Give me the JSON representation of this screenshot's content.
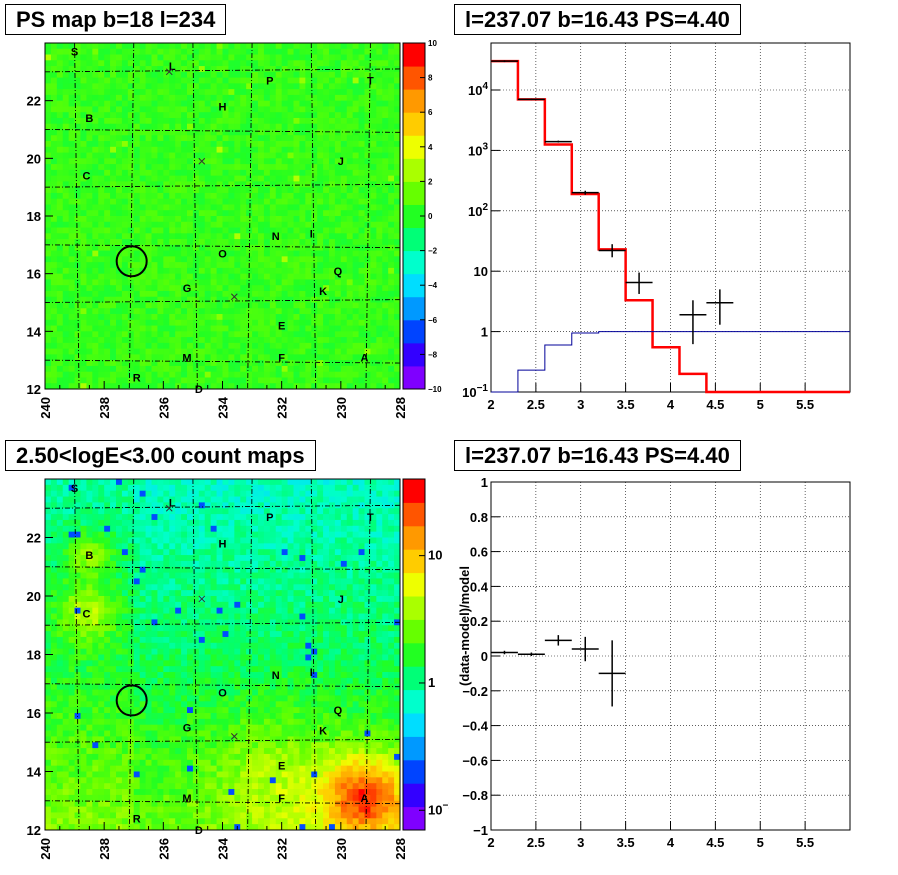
{
  "panels": {
    "ps_map": {
      "title": "PS map b=18 l=234"
    },
    "spectrum": {
      "title": "l=237.07 b=16.43 PS=4.40"
    },
    "count_map": {
      "title": "2.50<logE<3.00 count maps"
    },
    "residual": {
      "title": "l=237.07 b=16.43 PS=4.40"
    }
  },
  "chart_data": [
    {
      "type": "heatmap",
      "name": "ps_map",
      "title": "PS map b=18 l=234",
      "x_ticks": [
        "240",
        "238",
        "236",
        "234",
        "232",
        "230",
        "228"
      ],
      "y_ticks": [
        "22",
        "20",
        "18",
        "16",
        "14",
        "12"
      ],
      "xlim": [
        240,
        228
      ],
      "ylim": [
        12,
        24
      ],
      "colorbar": {
        "ticks": [
          "10",
          "8",
          "6",
          "4",
          "2",
          "0",
          "−2",
          "−4",
          "−6",
          "−8",
          "−10"
        ],
        "range": [
          -10,
          10
        ],
        "colors": [
          "#7f00ff",
          "#3300ff",
          "#0044ff",
          "#0099ff",
          "#00ddff",
          "#00ffcc",
          "#00ff77",
          "#22ff22",
          "#66ff00",
          "#aaff00",
          "#eeff00",
          "#ffcc00",
          "#ff9900",
          "#ff5500",
          "#ff0000"
        ]
      },
      "source_labels": [
        {
          "text": "S",
          "l": 239.0,
          "b": 23.7
        },
        {
          "text": "L",
          "l": 235.7,
          "b": 23.2
        },
        {
          "text": "P",
          "l": 232.4,
          "b": 22.7
        },
        {
          "text": "T",
          "l": 229.0,
          "b": 22.7
        },
        {
          "text": "H",
          "l": 234.0,
          "b": 21.8
        },
        {
          "text": "B",
          "l": 238.5,
          "b": 21.4
        },
        {
          "text": "J",
          "l": 230.0,
          "b": 19.9
        },
        {
          "text": "C",
          "l": 238.6,
          "b": 19.4
        },
        {
          "text": "N",
          "l": 232.2,
          "b": 17.3
        },
        {
          "text": "I",
          "l": 231.0,
          "b": 17.4
        },
        {
          "text": "O",
          "l": 234.0,
          "b": 16.7
        },
        {
          "text": "Q",
          "l": 230.1,
          "b": 16.1
        },
        {
          "text": "G",
          "l": 235.2,
          "b": 15.5
        },
        {
          "text": "K",
          "l": 230.6,
          "b": 15.4
        },
        {
          "text": "E",
          "l": 232.0,
          "b": 14.2
        },
        {
          "text": "M",
          "l": 235.2,
          "b": 13.1
        },
        {
          "text": "F",
          "l": 232.0,
          "b": 13.1
        },
        {
          "text": "A",
          "l": 229.2,
          "b": 13.1
        },
        {
          "text": "R",
          "l": 236.9,
          "b": 12.4
        },
        {
          "text": "D",
          "l": 234.8,
          "b": 12.0
        }
      ],
      "circle": {
        "l": 237.07,
        "b": 16.43
      },
      "crosses": [
        {
          "l": 235.8,
          "b": 23.0
        },
        {
          "l": 234.7,
          "b": 19.9
        },
        {
          "l": 233.6,
          "b": 15.2
        }
      ]
    },
    {
      "type": "line",
      "name": "spectrum",
      "title": "l=237.07 b=16.43 PS=4.40",
      "xlim": [
        2,
        6
      ],
      "ylim": [
        0.1,
        60000
      ],
      "yscale": "log",
      "x_ticks": [
        "2",
        "2.5",
        "3",
        "3.5",
        "4",
        "4.5",
        "5",
        "5.5"
      ],
      "y_ticks": [
        {
          "v": 0.1,
          "base": "10",
          "exp": "−1"
        },
        {
          "v": 1,
          "base": "1",
          "exp": ""
        },
        {
          "v": 10,
          "base": "10",
          "exp": ""
        },
        {
          "v": 100,
          "base": "10",
          "exp": "2"
        },
        {
          "v": 1000,
          "base": "10",
          "exp": "3"
        },
        {
          "v": 10000,
          "base": "10",
          "exp": "4"
        }
      ],
      "grid": true,
      "series": [
        {
          "color": "#ff0000",
          "edges": [
            2,
            2.3,
            2.6,
            2.9,
            3.2,
            3.5,
            3.8,
            4.1,
            4.4,
            6.0
          ],
          "values": [
            30000,
            7000,
            1250,
            190,
            23,
            3.3,
            0.55,
            0.2,
            0.1
          ]
        },
        {
          "color": "#000099",
          "edges": [
            2,
            2.3,
            2.6,
            2.9,
            3.2,
            3.5,
            6.0
          ],
          "values": [
            0.1,
            0.23,
            0.6,
            0.95,
            1.0,
            1.0
          ]
        }
      ],
      "points": [
        {
          "x": 2.15,
          "y": 30000,
          "xerr": 0.15,
          "ylo": 29000,
          "yhi": 31000
        },
        {
          "x": 2.45,
          "y": 7000,
          "xerr": 0.15,
          "ylo": 6800,
          "yhi": 7200
        },
        {
          "x": 2.75,
          "y": 1400,
          "xerr": 0.15,
          "ylo": 1350,
          "yhi": 1450
        },
        {
          "x": 3.05,
          "y": 200,
          "xerr": 0.15,
          "ylo": 185,
          "yhi": 215
        },
        {
          "x": 3.35,
          "y": 22,
          "xerr": 0.15,
          "ylo": 17,
          "yhi": 28
        },
        {
          "x": 3.65,
          "y": 6.5,
          "xerr": 0.15,
          "ylo": 4.2,
          "yhi": 9.5
        },
        {
          "x": 4.25,
          "y": 1.9,
          "xerr": 0.15,
          "ylo": 0.62,
          "yhi": 3.3
        },
        {
          "x": 4.55,
          "y": 3.0,
          "xerr": 0.15,
          "ylo": 1.3,
          "yhi": 5.0
        }
      ]
    },
    {
      "type": "heatmap",
      "name": "count_map",
      "title": "2.50<logE<3.00 count maps",
      "x_ticks": [
        "240",
        "238",
        "236",
        "234",
        "232",
        "230",
        "228"
      ],
      "y_ticks": [
        "22",
        "20",
        "18",
        "16",
        "14",
        "12"
      ],
      "xlim": [
        240,
        228
      ],
      "ylim": [
        12,
        24
      ],
      "colorbar": {
        "ticks": [
          {
            "v": 10,
            "base": "10",
            "exp": ""
          },
          {
            "v": 1,
            "base": "1",
            "exp": ""
          },
          {
            "v": 0.1,
            "base": "10",
            "exp": "−1"
          }
        ],
        "range": [
          0.07,
          40
        ],
        "scale": "log",
        "colors": [
          "#7f00ff",
          "#3300ff",
          "#0044ff",
          "#0099ff",
          "#00ddff",
          "#00ffcc",
          "#00ff77",
          "#22ff22",
          "#66ff00",
          "#aaff00",
          "#eeff00",
          "#ffcc00",
          "#ff9900",
          "#ff5500",
          "#ff0000"
        ]
      },
      "hotspots": [
        {
          "l": 229.1,
          "b": 13.1,
          "amp": 1.0,
          "r": 1.0
        },
        {
          "l": 238.5,
          "b": 21.4,
          "amp": 0.45,
          "r": 0.6
        },
        {
          "l": 238.6,
          "b": 19.4,
          "amp": 0.5,
          "r": 0.7
        },
        {
          "l": 232.0,
          "b": 13.6,
          "amp": 0.3,
          "r": 1.6
        }
      ]
    },
    {
      "type": "scatter",
      "name": "residual",
      "title": "l=237.07 b=16.43 PS=4.40",
      "xlim": [
        2,
        6
      ],
      "ylim": [
        -1,
        1
      ],
      "ylabel": "(data-model)/model",
      "x_ticks": [
        "2",
        "2.5",
        "3",
        "3.5",
        "4",
        "4.5",
        "5",
        "5.5"
      ],
      "y_ticks": [
        "1",
        "0.8",
        "0.6",
        "0.4",
        "0.2",
        "0",
        "−0.2",
        "−0.4",
        "−0.6",
        "−0.8",
        "−1"
      ],
      "grid": true,
      "points": [
        {
          "x": 2.15,
          "y": 0.02,
          "xerr": 0.15,
          "yerr": 0.01
        },
        {
          "x": 2.45,
          "y": 0.01,
          "xerr": 0.15,
          "yerr": 0.01
        },
        {
          "x": 2.75,
          "y": 0.09,
          "xerr": 0.15,
          "yerr": 0.03
        },
        {
          "x": 3.05,
          "y": 0.04,
          "xerr": 0.15,
          "yerr": 0.07
        },
        {
          "x": 3.35,
          "y": -0.1,
          "xerr": 0.15,
          "yerr": 0.19
        }
      ]
    }
  ]
}
